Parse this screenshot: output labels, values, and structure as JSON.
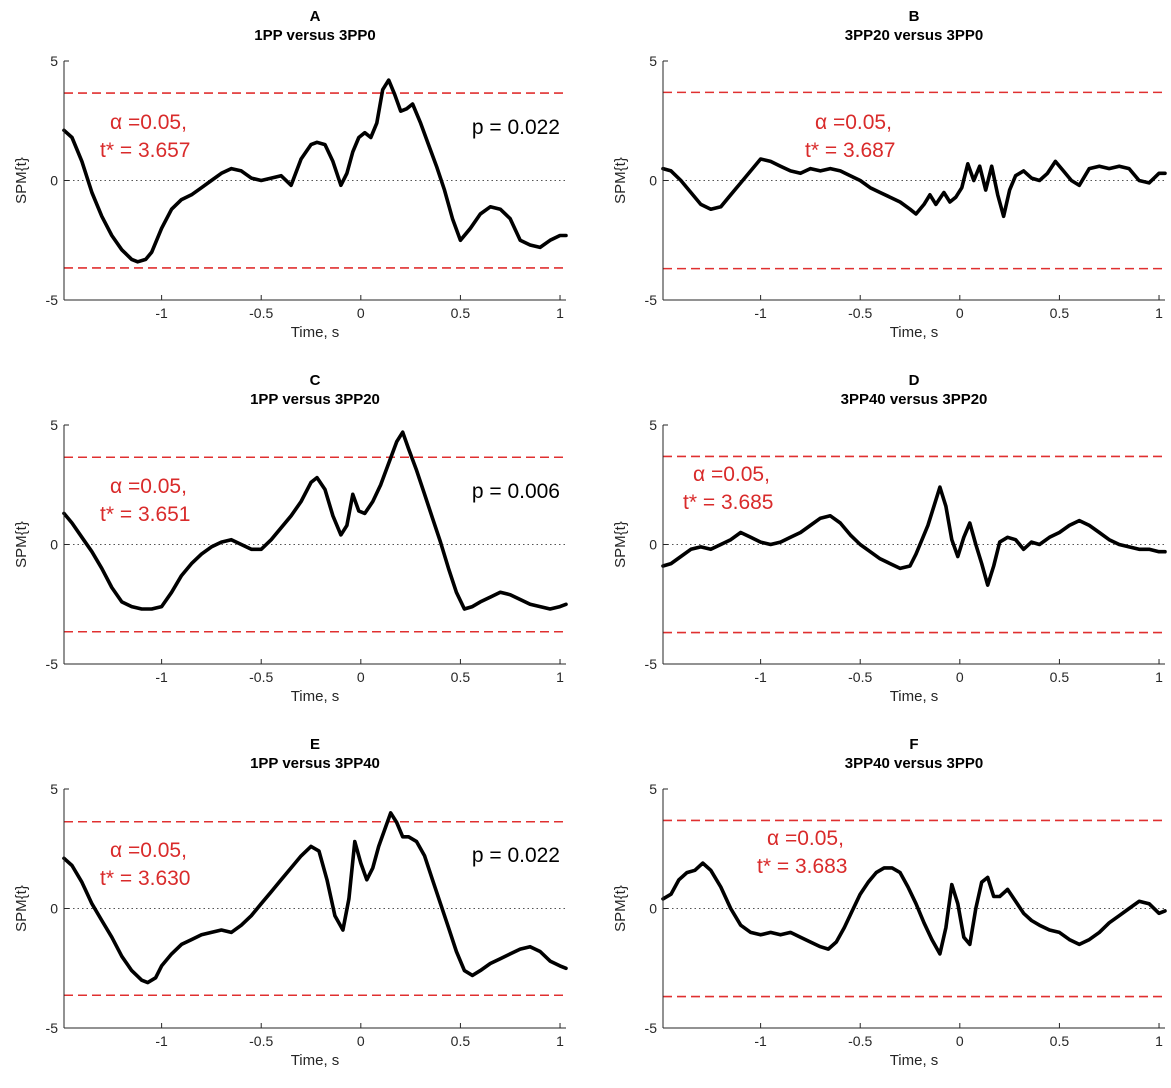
{
  "chart_data": [
    {
      "type": "line",
      "letter": "A",
      "title": "1PP versus 3PP0",
      "xlabel": "Time, s",
      "ylabel": "SPM{t}",
      "xlim": [
        -1.49,
        1.03
      ],
      "ylim": [
        -5,
        5
      ],
      "xticks": [
        -1,
        -0.5,
        0,
        0.5,
        1
      ],
      "yticks": [
        -5,
        0,
        5
      ],
      "xtick_labels": [
        "-1",
        "-0.5",
        "0",
        "0.5",
        "1"
      ],
      "ytick_labels": [
        "-5",
        "0",
        "5"
      ],
      "threshold": 3.657,
      "alpha_label": "α  =0.05,",
      "tstar_label": "t* = 3.657",
      "p_label": "p = 0.022",
      "x": [
        -1.49,
        -1.45,
        -1.4,
        -1.35,
        -1.3,
        -1.25,
        -1.2,
        -1.15,
        -1.12,
        -1.08,
        -1.05,
        -1.0,
        -0.95,
        -0.9,
        -0.85,
        -0.8,
        -0.75,
        -0.7,
        -0.65,
        -0.6,
        -0.55,
        -0.5,
        -0.45,
        -0.4,
        -0.35,
        -0.3,
        -0.25,
        -0.22,
        -0.18,
        -0.14,
        -0.1,
        -0.07,
        -0.04,
        -0.01,
        0.02,
        0.05,
        0.08,
        0.11,
        0.14,
        0.17,
        0.2,
        0.23,
        0.26,
        0.3,
        0.34,
        0.38,
        0.42,
        0.46,
        0.5,
        0.55,
        0.6,
        0.65,
        0.7,
        0.75,
        0.8,
        0.85,
        0.9,
        0.95,
        1.0,
        1.03
      ],
      "y": [
        2.1,
        1.8,
        0.8,
        -0.5,
        -1.5,
        -2.3,
        -2.9,
        -3.3,
        -3.4,
        -3.3,
        -3.0,
        -2.0,
        -1.2,
        -0.8,
        -0.6,
        -0.3,
        0.0,
        0.3,
        0.5,
        0.4,
        0.1,
        0.0,
        0.1,
        0.2,
        -0.2,
        0.9,
        1.5,
        1.6,
        1.5,
        0.8,
        -0.2,
        0.3,
        1.2,
        1.8,
        2.0,
        1.8,
        2.4,
        3.8,
        4.2,
        3.6,
        2.9,
        3.0,
        3.2,
        2.4,
        1.5,
        0.6,
        -0.4,
        -1.6,
        -2.5,
        -2.0,
        -1.4,
        -1.1,
        -1.2,
        -1.6,
        -2.5,
        -2.7,
        -2.8,
        -2.5,
        -2.3,
        -2.3
      ]
    },
    {
      "type": "line",
      "letter": "B",
      "title": "3PP20 versus 3PP0",
      "xlabel": "Time, s",
      "ylabel": "SPM{t}",
      "xlim": [
        -1.49,
        1.03
      ],
      "ylim": [
        -5,
        5
      ],
      "xticks": [
        -1,
        -0.5,
        0,
        0.5,
        1
      ],
      "yticks": [
        -5,
        0,
        5
      ],
      "xtick_labels": [
        "-1",
        "-0.5",
        "0",
        "0.5",
        "1"
      ],
      "ytick_labels": [
        "-5",
        "0",
        "5"
      ],
      "threshold": 3.687,
      "alpha_label": "α  =0.05,",
      "tstar_label": "t* = 3.687",
      "p_label": "",
      "x": [
        -1.49,
        -1.45,
        -1.4,
        -1.35,
        -1.3,
        -1.25,
        -1.2,
        -1.15,
        -1.1,
        -1.05,
        -1.0,
        -0.95,
        -0.9,
        -0.85,
        -0.8,
        -0.75,
        -0.7,
        -0.65,
        -0.6,
        -0.55,
        -0.5,
        -0.45,
        -0.4,
        -0.35,
        -0.3,
        -0.25,
        -0.22,
        -0.18,
        -0.15,
        -0.12,
        -0.08,
        -0.05,
        -0.02,
        0.01,
        0.04,
        0.07,
        0.1,
        0.13,
        0.16,
        0.19,
        0.22,
        0.25,
        0.28,
        0.32,
        0.36,
        0.4,
        0.44,
        0.48,
        0.52,
        0.56,
        0.6,
        0.65,
        0.7,
        0.75,
        0.8,
        0.85,
        0.9,
        0.95,
        1.0,
        1.03
      ],
      "y": [
        0.5,
        0.4,
        0.0,
        -0.5,
        -1.0,
        -1.2,
        -1.1,
        -0.6,
        -0.1,
        0.4,
        0.9,
        0.8,
        0.6,
        0.4,
        0.3,
        0.5,
        0.4,
        0.5,
        0.4,
        0.2,
        0.0,
        -0.3,
        -0.5,
        -0.7,
        -0.9,
        -1.2,
        -1.4,
        -1.0,
        -0.6,
        -1.0,
        -0.5,
        -0.9,
        -0.7,
        -0.3,
        0.7,
        0.0,
        0.6,
        -0.4,
        0.6,
        -0.6,
        -1.5,
        -0.4,
        0.2,
        0.4,
        0.1,
        0.0,
        0.3,
        0.8,
        0.4,
        0.0,
        -0.2,
        0.5,
        0.6,
        0.5,
        0.6,
        0.5,
        0.0,
        -0.1,
        0.3,
        0.3
      ]
    },
    {
      "type": "line",
      "letter": "C",
      "title": "1PP versus 3PP20",
      "xlabel": "Time, s",
      "ylabel": "SPM{t}",
      "xlim": [
        -1.49,
        1.03
      ],
      "ylim": [
        -5,
        5
      ],
      "xticks": [
        -1,
        -0.5,
        0,
        0.5,
        1
      ],
      "yticks": [
        -5,
        0,
        5
      ],
      "xtick_labels": [
        "-1",
        "-0.5",
        "0",
        "0.5",
        "1"
      ],
      "ytick_labels": [
        "-5",
        "0",
        "5"
      ],
      "threshold": 3.651,
      "alpha_label": "α  =0.05,",
      "tstar_label": "t* = 3.651",
      "p_label": "p = 0.006",
      "x": [
        -1.49,
        -1.45,
        -1.4,
        -1.35,
        -1.3,
        -1.25,
        -1.2,
        -1.15,
        -1.1,
        -1.05,
        -1.0,
        -0.95,
        -0.9,
        -0.85,
        -0.8,
        -0.75,
        -0.7,
        -0.65,
        -0.6,
        -0.55,
        -0.5,
        -0.45,
        -0.4,
        -0.35,
        -0.3,
        -0.25,
        -0.22,
        -0.18,
        -0.14,
        -0.1,
        -0.07,
        -0.04,
        -0.01,
        0.02,
        0.06,
        0.1,
        0.14,
        0.18,
        0.21,
        0.24,
        0.28,
        0.32,
        0.36,
        0.4,
        0.44,
        0.48,
        0.52,
        0.56,
        0.6,
        0.65,
        0.7,
        0.75,
        0.8,
        0.85,
        0.9,
        0.95,
        1.0,
        1.03
      ],
      "y": [
        1.3,
        0.9,
        0.3,
        -0.3,
        -1.0,
        -1.8,
        -2.4,
        -2.6,
        -2.7,
        -2.7,
        -2.6,
        -2.0,
        -1.3,
        -0.8,
        -0.4,
        -0.1,
        0.1,
        0.2,
        0.0,
        -0.2,
        -0.2,
        0.2,
        0.7,
        1.2,
        1.8,
        2.6,
        2.8,
        2.3,
        1.2,
        0.4,
        0.8,
        2.1,
        1.4,
        1.3,
        1.8,
        2.5,
        3.4,
        4.3,
        4.7,
        4.0,
        3.1,
        2.1,
        1.1,
        0.1,
        -1.0,
        -2.0,
        -2.7,
        -2.6,
        -2.4,
        -2.2,
        -2.0,
        -2.1,
        -2.3,
        -2.5,
        -2.6,
        -2.7,
        -2.6,
        -2.5
      ]
    },
    {
      "type": "line",
      "letter": "D",
      "title": "3PP40 versus 3PP20",
      "xlabel": "Time, s",
      "ylabel": "SPM{t}",
      "xlim": [
        -1.49,
        1.03
      ],
      "ylim": [
        -5,
        5
      ],
      "xticks": [
        -1,
        -0.5,
        0,
        0.5,
        1
      ],
      "yticks": [
        -5,
        0,
        5
      ],
      "xtick_labels": [
        "-1",
        "-0.5",
        "0",
        "0.5",
        "1"
      ],
      "ytick_labels": [
        "-5",
        "0",
        "5"
      ],
      "threshold": 3.685,
      "alpha_label": "α  =0.05,",
      "tstar_label": "t* = 3.685",
      "p_label": "",
      "x": [
        -1.49,
        -1.45,
        -1.4,
        -1.35,
        -1.3,
        -1.25,
        -1.2,
        -1.15,
        -1.1,
        -1.05,
        -1.0,
        -0.95,
        -0.9,
        -0.85,
        -0.8,
        -0.75,
        -0.7,
        -0.65,
        -0.6,
        -0.55,
        -0.5,
        -0.45,
        -0.4,
        -0.35,
        -0.3,
        -0.25,
        -0.22,
        -0.19,
        -0.16,
        -0.13,
        -0.1,
        -0.07,
        -0.04,
        -0.01,
        0.02,
        0.05,
        0.08,
        0.11,
        0.14,
        0.17,
        0.2,
        0.24,
        0.28,
        0.32,
        0.36,
        0.4,
        0.45,
        0.5,
        0.55,
        0.6,
        0.65,
        0.7,
        0.75,
        0.8,
        0.85,
        0.9,
        0.95,
        1.0,
        1.03
      ],
      "y": [
        -0.9,
        -0.8,
        -0.5,
        -0.2,
        -0.1,
        -0.2,
        0.0,
        0.2,
        0.5,
        0.3,
        0.1,
        0.0,
        0.1,
        0.3,
        0.5,
        0.8,
        1.1,
        1.2,
        0.9,
        0.4,
        0.0,
        -0.3,
        -0.6,
        -0.8,
        -1.0,
        -0.9,
        -0.4,
        0.2,
        0.8,
        1.6,
        2.4,
        1.6,
        0.2,
        -0.5,
        0.3,
        0.9,
        0.0,
        -0.8,
        -1.7,
        -0.9,
        0.1,
        0.3,
        0.2,
        -0.2,
        0.1,
        0.0,
        0.3,
        0.5,
        0.8,
        1.0,
        0.8,
        0.5,
        0.2,
        0.0,
        -0.1,
        -0.2,
        -0.2,
        -0.3,
        -0.3
      ]
    },
    {
      "type": "line",
      "letter": "E",
      "title": "1PP versus 3PP40",
      "xlabel": "Time, s",
      "ylabel": "SPM{t}",
      "xlim": [
        -1.49,
        1.03
      ],
      "ylim": [
        -5,
        5
      ],
      "xticks": [
        -1,
        -0.5,
        0,
        0.5,
        1
      ],
      "yticks": [
        -5,
        0,
        5
      ],
      "xtick_labels": [
        "-1",
        "-0.5",
        "0",
        "0.5",
        "1"
      ],
      "ytick_labels": [
        "-5",
        "0",
        "5"
      ],
      "threshold": 3.63,
      "alpha_label": "α  =0.05,",
      "tstar_label": "t* = 3.630",
      "p_label": "p = 0.022",
      "x": [
        -1.49,
        -1.45,
        -1.4,
        -1.35,
        -1.3,
        -1.25,
        -1.2,
        -1.15,
        -1.1,
        -1.07,
        -1.03,
        -1.0,
        -0.95,
        -0.9,
        -0.85,
        -0.8,
        -0.75,
        -0.7,
        -0.65,
        -0.6,
        -0.55,
        -0.5,
        -0.45,
        -0.4,
        -0.35,
        -0.3,
        -0.25,
        -0.21,
        -0.17,
        -0.13,
        -0.09,
        -0.06,
        -0.03,
        0.0,
        0.03,
        0.06,
        0.09,
        0.12,
        0.15,
        0.18,
        0.21,
        0.24,
        0.28,
        0.32,
        0.36,
        0.4,
        0.44,
        0.48,
        0.52,
        0.56,
        0.6,
        0.65,
        0.7,
        0.75,
        0.8,
        0.85,
        0.9,
        0.95,
        1.0,
        1.03
      ],
      "y": [
        2.1,
        1.8,
        1.1,
        0.2,
        -0.5,
        -1.2,
        -2.0,
        -2.6,
        -3.0,
        -3.1,
        -2.9,
        -2.4,
        -1.9,
        -1.5,
        -1.3,
        -1.1,
        -1.0,
        -0.9,
        -1.0,
        -0.7,
        -0.3,
        0.2,
        0.7,
        1.2,
        1.7,
        2.2,
        2.6,
        2.4,
        1.2,
        -0.3,
        -0.9,
        0.4,
        2.8,
        1.9,
        1.2,
        1.7,
        2.6,
        3.3,
        4.0,
        3.6,
        3.0,
        3.0,
        2.8,
        2.2,
        1.2,
        0.2,
        -0.8,
        -1.8,
        -2.6,
        -2.8,
        -2.6,
        -2.3,
        -2.1,
        -1.9,
        -1.7,
        -1.6,
        -1.8,
        -2.2,
        -2.4,
        -2.5
      ]
    },
    {
      "type": "line",
      "letter": "F",
      "title": "3PP40 versus 3PP0",
      "xlabel": "Time, s",
      "ylabel": "SPM{t}",
      "xlim": [
        -1.49,
        1.03
      ],
      "ylim": [
        -5,
        5
      ],
      "xticks": [
        -1,
        -0.5,
        0,
        0.5,
        1
      ],
      "yticks": [
        -5,
        0,
        5
      ],
      "xtick_labels": [
        "-1",
        "-0.5",
        "0",
        "0.5",
        "1"
      ],
      "ytick_labels": [
        "-5",
        "0",
        "5"
      ],
      "threshold": 3.683,
      "alpha_label": "α  =0.05,",
      "tstar_label": "t* = 3.683",
      "p_label": "",
      "x": [
        -1.49,
        -1.45,
        -1.41,
        -1.37,
        -1.33,
        -1.29,
        -1.25,
        -1.2,
        -1.15,
        -1.1,
        -1.05,
        -1.0,
        -0.95,
        -0.9,
        -0.85,
        -0.8,
        -0.75,
        -0.7,
        -0.66,
        -0.62,
        -0.58,
        -0.54,
        -0.5,
        -0.46,
        -0.42,
        -0.38,
        -0.34,
        -0.3,
        -0.26,
        -0.22,
        -0.18,
        -0.14,
        -0.1,
        -0.07,
        -0.04,
        -0.01,
        0.02,
        0.05,
        0.08,
        0.11,
        0.14,
        0.17,
        0.2,
        0.24,
        0.28,
        0.32,
        0.36,
        0.4,
        0.45,
        0.5,
        0.55,
        0.6,
        0.65,
        0.7,
        0.75,
        0.8,
        0.85,
        0.9,
        0.95,
        1.0,
        1.03
      ],
      "y": [
        0.4,
        0.6,
        1.2,
        1.5,
        1.6,
        1.9,
        1.6,
        0.9,
        0.0,
        -0.7,
        -1.0,
        -1.1,
        -1.0,
        -1.1,
        -1.0,
        -1.2,
        -1.4,
        -1.6,
        -1.7,
        -1.4,
        -0.8,
        -0.1,
        0.6,
        1.1,
        1.5,
        1.7,
        1.7,
        1.5,
        0.9,
        0.2,
        -0.6,
        -1.3,
        -1.9,
        -0.8,
        1.0,
        0.2,
        -1.2,
        -1.5,
        0.0,
        1.1,
        1.3,
        0.5,
        0.5,
        0.8,
        0.3,
        -0.2,
        -0.5,
        -0.7,
        -0.9,
        -1.0,
        -1.3,
        -1.5,
        -1.3,
        -1.0,
        -0.6,
        -0.3,
        0.0,
        0.3,
        0.2,
        -0.2,
        -0.1
      ]
    }
  ]
}
